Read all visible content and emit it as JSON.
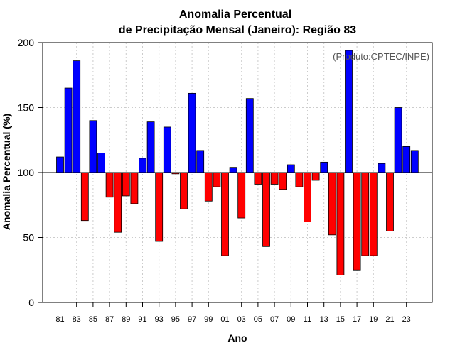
{
  "chart_data": {
    "type": "bar",
    "title_line1": "Anomalia Percentual",
    "title_line2": "de Precipitação Mensal (Janeiro): Região 83",
    "xlabel": "Ano",
    "ylabel": "Anomalia Percentual (%)",
    "credit": "(Produto:CPTEC/INPE)",
    "baseline": 100,
    "ylim": [
      0,
      200
    ],
    "yticks": [
      0,
      50,
      100,
      150,
      200
    ],
    "grid": true,
    "colors": {
      "above": "#0000ff",
      "below": "#ff0000",
      "edge": "#000000",
      "grid": "#cccccc"
    },
    "categories": [
      "81",
      "82",
      "83",
      "84",
      "85",
      "86",
      "87",
      "88",
      "89",
      "90",
      "91",
      "92",
      "93",
      "94",
      "95",
      "96",
      "97",
      "98",
      "99",
      "00",
      "01",
      "02",
      "03",
      "04",
      "05",
      "06",
      "07",
      "08",
      "09",
      "10",
      "11",
      "12",
      "13",
      "14",
      "15",
      "16",
      "17",
      "18",
      "19",
      "20",
      "21",
      "22",
      "23",
      "24"
    ],
    "xtick_labels": [
      "81",
      "83",
      "85",
      "87",
      "89",
      "91",
      "93",
      "95",
      "97",
      "99",
      "01",
      "03",
      "05",
      "07",
      "09",
      "11",
      "13",
      "15",
      "17",
      "19",
      "21",
      "23"
    ],
    "values": [
      112,
      165,
      186,
      63,
      140,
      115,
      81,
      54,
      82,
      76,
      111,
      139,
      47,
      135,
      99,
      72,
      161,
      117,
      78,
      89,
      36,
      104,
      65,
      157,
      91,
      43,
      91,
      87,
      106,
      89,
      62,
      94,
      108,
      52,
      21,
      194,
      25,
      36,
      36,
      107,
      55,
      150,
      120,
      117
    ]
  }
}
